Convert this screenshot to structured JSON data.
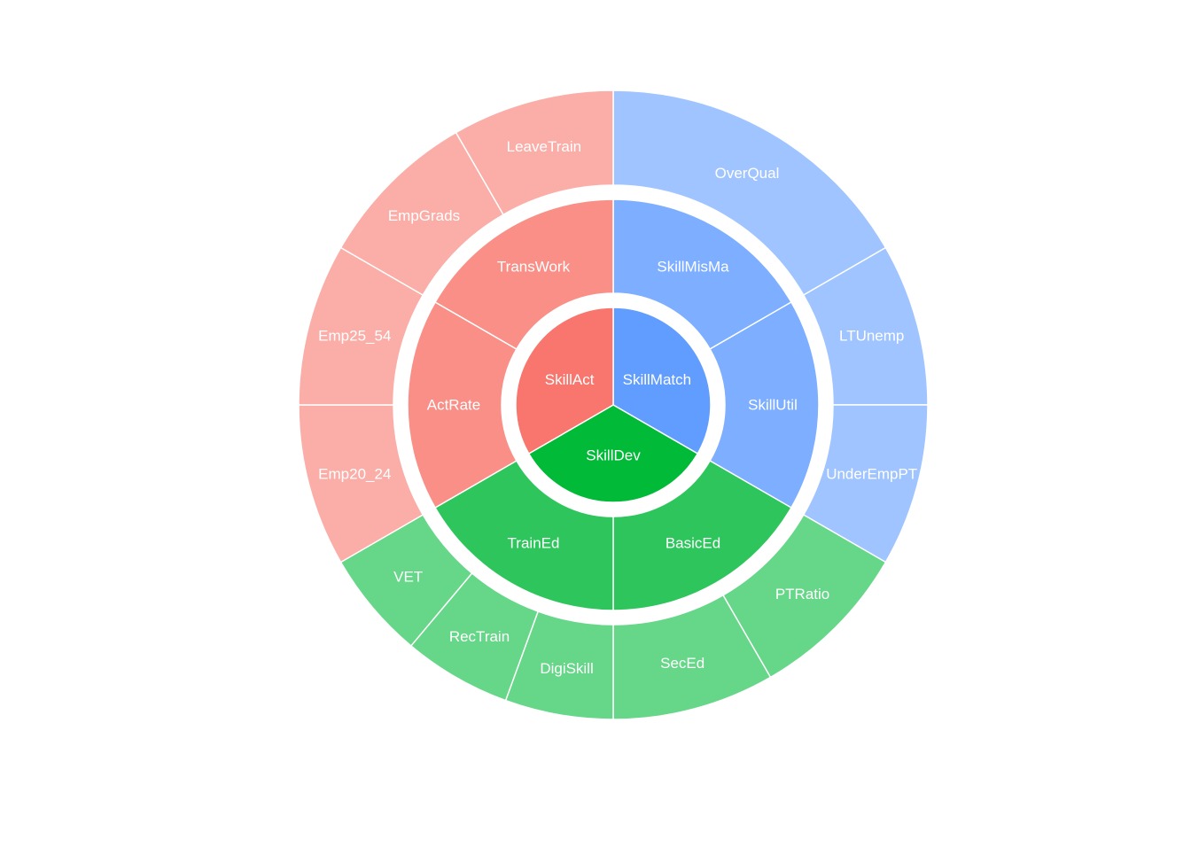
{
  "chart_data": {
    "type": "sunburst",
    "title": "",
    "legend": "none",
    "grid": false,
    "groups": [
      {
        "name": "SkillMatch",
        "color": "#619CFF",
        "value": 0.3333,
        "children": [
          {
            "name": "SkillMisMa",
            "value": 0.1667,
            "children": [
              {
                "name": "OverQual",
                "value": 0.1667
              }
            ]
          },
          {
            "name": "SkillUtil",
            "value": 0.1667,
            "children": [
              {
                "name": "LTUnemp",
                "value": 0.0833
              },
              {
                "name": "UnderEmpPT",
                "value": 0.0833
              }
            ]
          }
        ]
      },
      {
        "name": "SkillDev",
        "color": "#00BA38",
        "value": 0.3333,
        "children": [
          {
            "name": "BasicEd",
            "value": 0.1667,
            "children": [
              {
                "name": "PTRatio",
                "value": 0.0833
              },
              {
                "name": "SecEd",
                "value": 0.0833
              }
            ]
          },
          {
            "name": "TrainEd",
            "value": 0.1667,
            "children": [
              {
                "name": "DigiSkill",
                "value": 0.0556
              },
              {
                "name": "RecTrain",
                "value": 0.0556
              },
              {
                "name": "VET",
                "value": 0.0556
              }
            ]
          }
        ]
      },
      {
        "name": "SkillAct",
        "color": "#F8766D",
        "value": 0.3333,
        "children": [
          {
            "name": "ActRate",
            "value": 0.1667,
            "children": [
              {
                "name": "Emp20_24",
                "value": 0.0833
              },
              {
                "name": "Emp25_54",
                "value": 0.0833
              }
            ]
          },
          {
            "name": "TransWork",
            "value": 0.1667,
            "children": [
              {
                "name": "EmpGrads",
                "value": 0.0833
              },
              {
                "name": "LeaveTrain",
                "value": 0.0833
              }
            ]
          }
        ]
      }
    ]
  }
}
